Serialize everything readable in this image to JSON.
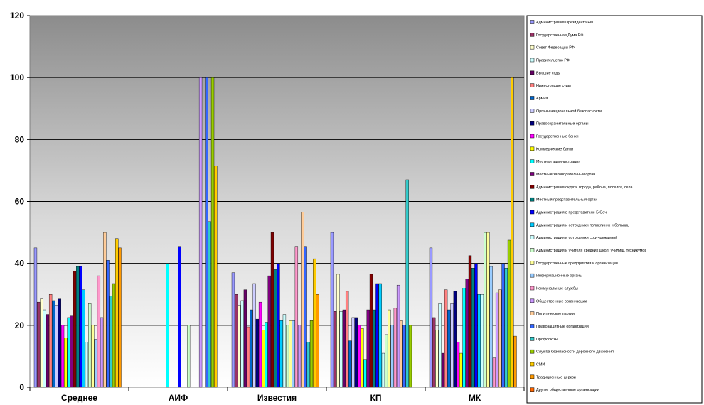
{
  "chart_data": {
    "type": "bar",
    "ylim": [
      0,
      120
    ],
    "yticks": [
      "0",
      "20",
      "40",
      "60",
      "80",
      "100",
      "120"
    ],
    "categories": [
      "Среднее",
      "АИФ",
      "Известия",
      "КП",
      "МК"
    ],
    "grid": true,
    "legend_position": "right",
    "series": [
      {
        "name": "Администрация Президента РФ",
        "color": "#9999ff",
        "values": [
          45,
          null,
          37,
          50,
          45
        ]
      },
      {
        "name": "Государственная Дума РФ",
        "color": "#993366",
        "values": [
          27.5,
          null,
          30,
          24.5,
          22.5
        ]
      },
      {
        "name": "Совет Федерации РФ",
        "color": "#ffffcc",
        "values": [
          28.5,
          null,
          26.5,
          36.5,
          18.5
        ]
      },
      {
        "name": "Правительство РФ",
        "color": "#ccffff",
        "values": [
          25,
          null,
          28,
          24.5,
          27
        ]
      },
      {
        "name": "Высшие суды",
        "color": "#660066",
        "values": [
          23.5,
          null,
          31.5,
          25,
          11
        ]
      },
      {
        "name": "Нижестоящие суды",
        "color": "#ff8080",
        "values": [
          30,
          null,
          19.5,
          31,
          31.5
        ]
      },
      {
        "name": "Армия",
        "color": "#0066cc",
        "values": [
          28,
          null,
          25,
          15,
          25
        ]
      },
      {
        "name": "Органы национальной безопасности",
        "color": "#ccccff",
        "values": [
          26.5,
          null,
          33.5,
          22.5,
          27
        ]
      },
      {
        "name": "Правоохранительные органы",
        "color": "#000080",
        "values": [
          28.5,
          null,
          22,
          22.5,
          31
        ]
      },
      {
        "name": "Государственные банки",
        "color": "#ff00ff",
        "values": [
          20,
          null,
          27.5,
          20,
          14.5
        ]
      },
      {
        "name": "Коммерческие банки",
        "color": "#ffff00",
        "values": [
          16,
          null,
          18.5,
          19,
          11
        ]
      },
      {
        "name": "Местная администрация",
        "color": "#00ffff",
        "values": [
          22.5,
          40,
          21,
          9,
          32
        ]
      },
      {
        "name": "Местный законодательный орган",
        "color": "#800080",
        "values": [
          23,
          null,
          36,
          25,
          35
        ]
      },
      {
        "name": "Администрация округа, города, района, поселка, села",
        "color": "#800000",
        "values": [
          37.5,
          null,
          50,
          36.5,
          42.5
        ]
      },
      {
        "name": "Местный представительный орган",
        "color": "#008080",
        "values": [
          39,
          null,
          38,
          25,
          38.5
        ]
      },
      {
        "name": "Администрация в представителе Б.Соч",
        "color": "#0000ff",
        "values": [
          39,
          45.5,
          40,
          33.5,
          40
        ]
      },
      {
        "name": "Администрация и сотрудники поликлиник и больниц",
        "color": "#00ccff",
        "values": [
          31.5,
          null,
          21.5,
          33.5,
          30
        ]
      },
      {
        "name": "Администрация и сотрудники соцучреждений",
        "color": "#ccffff",
        "values": [
          14.5,
          null,
          23.5,
          11,
          30
        ]
      },
      {
        "name": "Администрация и учителя средних школ, училищ, техникумов",
        "color": "#ccffcc",
        "values": [
          27,
          20,
          20,
          17,
          50
        ]
      },
      {
        "name": "Государственные предприятия и организации",
        "color": "#ffff99",
        "values": [
          20,
          null,
          21.5,
          25,
          50
        ]
      },
      {
        "name": "Информационные органы",
        "color": "#99ccff",
        "values": [
          15.5,
          null,
          21.5,
          20,
          39
        ]
      },
      {
        "name": "Коммунальные службы",
        "color": "#ff99cc",
        "values": [
          36,
          null,
          45.5,
          25.5,
          9.5
        ]
      },
      {
        "name": "Общественные организации",
        "color": "#cc99ff",
        "values": [
          22.5,
          100,
          20,
          33,
          30.5
        ]
      },
      {
        "name": "Политические партии",
        "color": "#ffcc99",
        "values": [
          50,
          null,
          56.5,
          21.5,
          31.5
        ]
      },
      {
        "name": "Правозащитные организации",
        "color": "#3366ff",
        "values": [
          41,
          100,
          45.5,
          20,
          40
        ]
      },
      {
        "name": "Профсоюзы",
        "color": "#33cccc",
        "values": [
          29.5,
          53.5,
          14.5,
          67,
          38.5
        ]
      },
      {
        "name": "Служба безопасности дорожного движения",
        "color": "#99cc00",
        "values": [
          33.5,
          100,
          21.5,
          20,
          47.5
        ]
      },
      {
        "name": "СМИ",
        "color": "#ffcc00",
        "values": [
          48,
          71.5,
          41.5,
          null,
          100
        ]
      },
      {
        "name": "Традиционные церкви",
        "color": "#ff9900",
        "values": [
          45,
          null,
          30,
          null,
          16.5
        ]
      },
      {
        "name": "Другие общественные организации",
        "color": "#ff6600",
        "values": [
          null,
          null,
          null,
          null,
          null
        ]
      }
    ]
  }
}
